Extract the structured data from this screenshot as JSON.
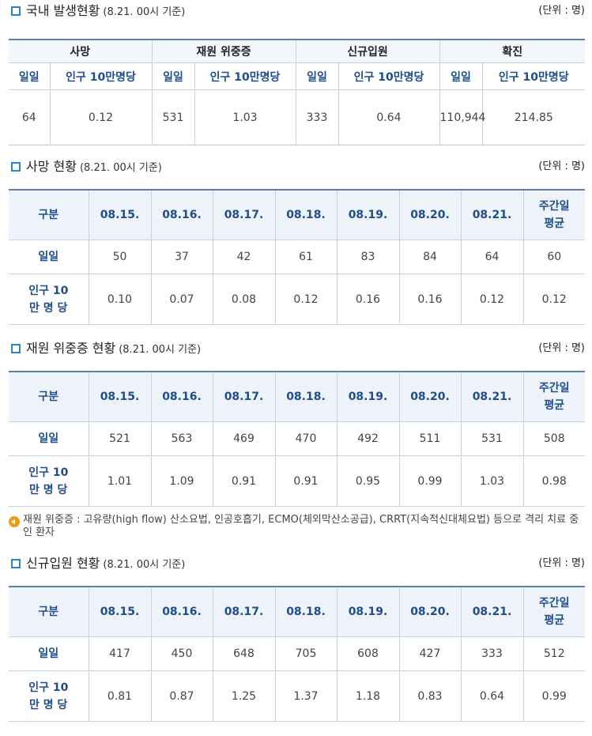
{
  "summary": {
    "title": "국내 발생현황",
    "subtitle": "(8.21. 00시 기준)",
    "unit": "(단위 : 명)",
    "groups": [
      "사망",
      "재원 위중증",
      "신규입원",
      "확진"
    ],
    "col_daily": "일일",
    "col_per100k": "인구 10만명당",
    "values": [
      "64",
      "0.12",
      "531",
      "1.03",
      "333",
      "0.64",
      "110,944",
      "214.85"
    ]
  },
  "deaths": {
    "title": "사망 현황",
    "subtitle": "(8.21. 00시 기준)",
    "unit": "(단위 : 명)",
    "header": [
      "구분",
      "08.15.",
      "08.16.",
      "08.17.",
      "08.18.",
      "08.19.",
      "08.20.",
      "08.21.",
      "주간일 평균"
    ],
    "row_daily_label": "일일",
    "row_daily": [
      "50",
      "37",
      "42",
      "61",
      "83",
      "84",
      "64",
      "60"
    ],
    "row_per100k_label": "인구 10만 명 당",
    "row_per100k": [
      "0.10",
      "0.07",
      "0.08",
      "0.12",
      "0.16",
      "0.16",
      "0.12",
      "0.12"
    ]
  },
  "critical": {
    "title": "재원 위중증 현황",
    "subtitle": "(8.21. 00시 기준)",
    "unit": "(단위 : 명)",
    "header": [
      "구분",
      "08.15.",
      "08.16.",
      "08.17.",
      "08.18.",
      "08.19.",
      "08.20.",
      "08.21.",
      "주간일 평균"
    ],
    "row_daily_label": "일일",
    "row_daily": [
      "521",
      "563",
      "469",
      "470",
      "492",
      "511",
      "531",
      "508"
    ],
    "row_per100k_label": "인구 10만 명 당",
    "row_per100k": [
      "1.01",
      "1.09",
      "0.91",
      "0.91",
      "0.95",
      "0.99",
      "1.03",
      "0.98"
    ]
  },
  "note": "재원 위중증 : 고유량(high flow) 산소요법, 인공호흡기, ECMO(체외막산소공급), CRRT(지속적신대체요법) 등으로 격리 치료 중인 환자",
  "admissions": {
    "title": "신규입원 현황",
    "subtitle": "(8.21. 00시 기준)",
    "unit": "(단위 : 명)",
    "header": [
      "구분",
      "08.15.",
      "08.16.",
      "08.17.",
      "08.18.",
      "08.19.",
      "08.20.",
      "08.21.",
      "주간일 평균"
    ],
    "row_daily_label": "일일",
    "row_daily": [
      "417",
      "450",
      "648",
      "705",
      "608",
      "427",
      "333",
      "512"
    ],
    "row_per100k_label": "인구 10만 명 당",
    "row_per100k": [
      "0.81",
      "0.87",
      "1.25",
      "1.37",
      "1.18",
      "0.83",
      "0.64",
      "0.99"
    ]
  }
}
